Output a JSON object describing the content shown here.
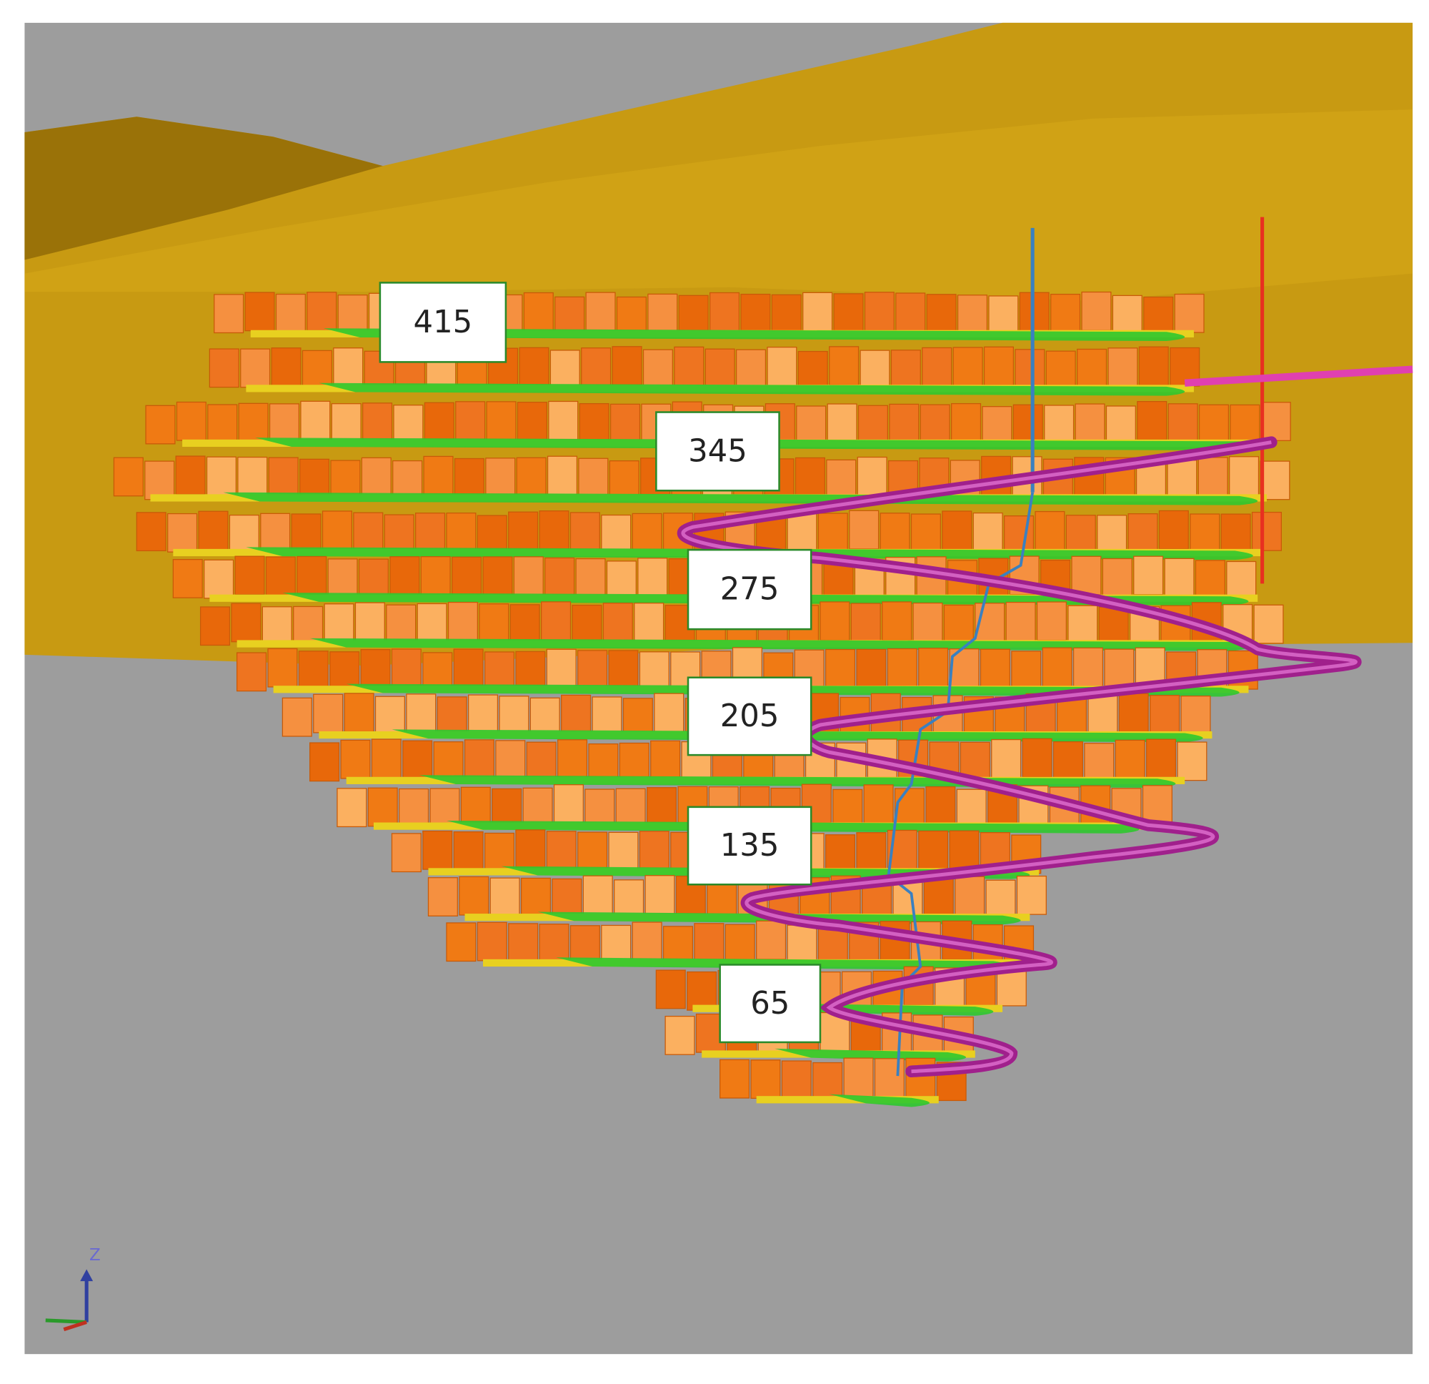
{
  "levels": [
    {
      "label": "415"
    },
    {
      "label": "345"
    },
    {
      "label": "275"
    },
    {
      "label": "205"
    },
    {
      "label": "135"
    },
    {
      "label": "65"
    }
  ],
  "axis": {
    "z": "Z"
  }
}
